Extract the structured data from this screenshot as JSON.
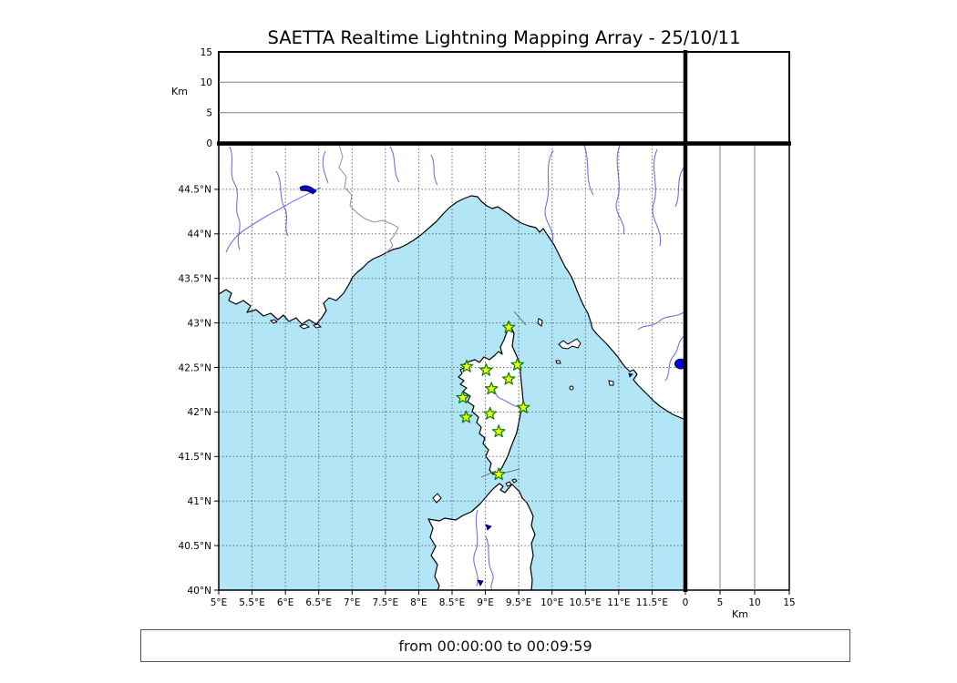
{
  "title": "SAETTA Realtime Lightning Mapping Array - 25/10/11",
  "footer": {
    "time_range": "from 00:00:00 to 00:09:59"
  },
  "altitude_axis": {
    "unit_label": "Km",
    "ticks": [
      0,
      5,
      10,
      15
    ],
    "max": 15
  },
  "distance_axis": {
    "unit_label": "Km",
    "ticks": [
      0,
      5,
      10,
      15
    ],
    "max": 15
  },
  "map": {
    "lon_range": [
      5,
      12
    ],
    "lat_range": [
      40,
      45
    ],
    "grid_step_deg": 0.5,
    "lon_tick_labels": [
      "5°E",
      "5.5°E",
      "6°E",
      "6.5°E",
      "7°E",
      "7.5°E",
      "8°E",
      "8.5°E",
      "9°E",
      "9.5°E",
      "10°E",
      "10.5°E",
      "11°E",
      "11.5°E"
    ],
    "lat_tick_labels": [
      "44.5°N",
      "44°N",
      "43.5°N",
      "43°N",
      "42.5°N",
      "42°N",
      "41.5°N",
      "41°N",
      "40.5°N",
      "40°N"
    ]
  },
  "stations": [
    {
      "lon": 9.35,
      "lat": 42.95
    },
    {
      "lon": 8.72,
      "lat": 42.51
    },
    {
      "lon": 9.01,
      "lat": 42.47
    },
    {
      "lon": 9.48,
      "lat": 42.53
    },
    {
      "lon": 9.35,
      "lat": 42.37
    },
    {
      "lon": 9.09,
      "lat": 42.26
    },
    {
      "lon": 8.66,
      "lat": 42.16
    },
    {
      "lon": 9.57,
      "lat": 42.05
    },
    {
      "lon": 8.71,
      "lat": 41.94
    },
    {
      "lon": 9.07,
      "lat": 41.98
    },
    {
      "lon": 9.2,
      "lat": 41.78
    },
    {
      "lon": 9.2,
      "lat": 41.3
    }
  ],
  "lakes": [
    {
      "name": "lake-bolsena",
      "lon": 11.93,
      "lat": 42.54
    }
  ],
  "colors": {
    "sea": "#b2e5f5",
    "land": "#ffffff",
    "coast": "#000000",
    "river": "#6a6ae0",
    "lake": "#0000cc",
    "country_border": "#909090",
    "grid": "#4a4a4a",
    "panel_grid": "#808080",
    "station_fill": "#ffff00",
    "station_edge": "#007f00"
  }
}
